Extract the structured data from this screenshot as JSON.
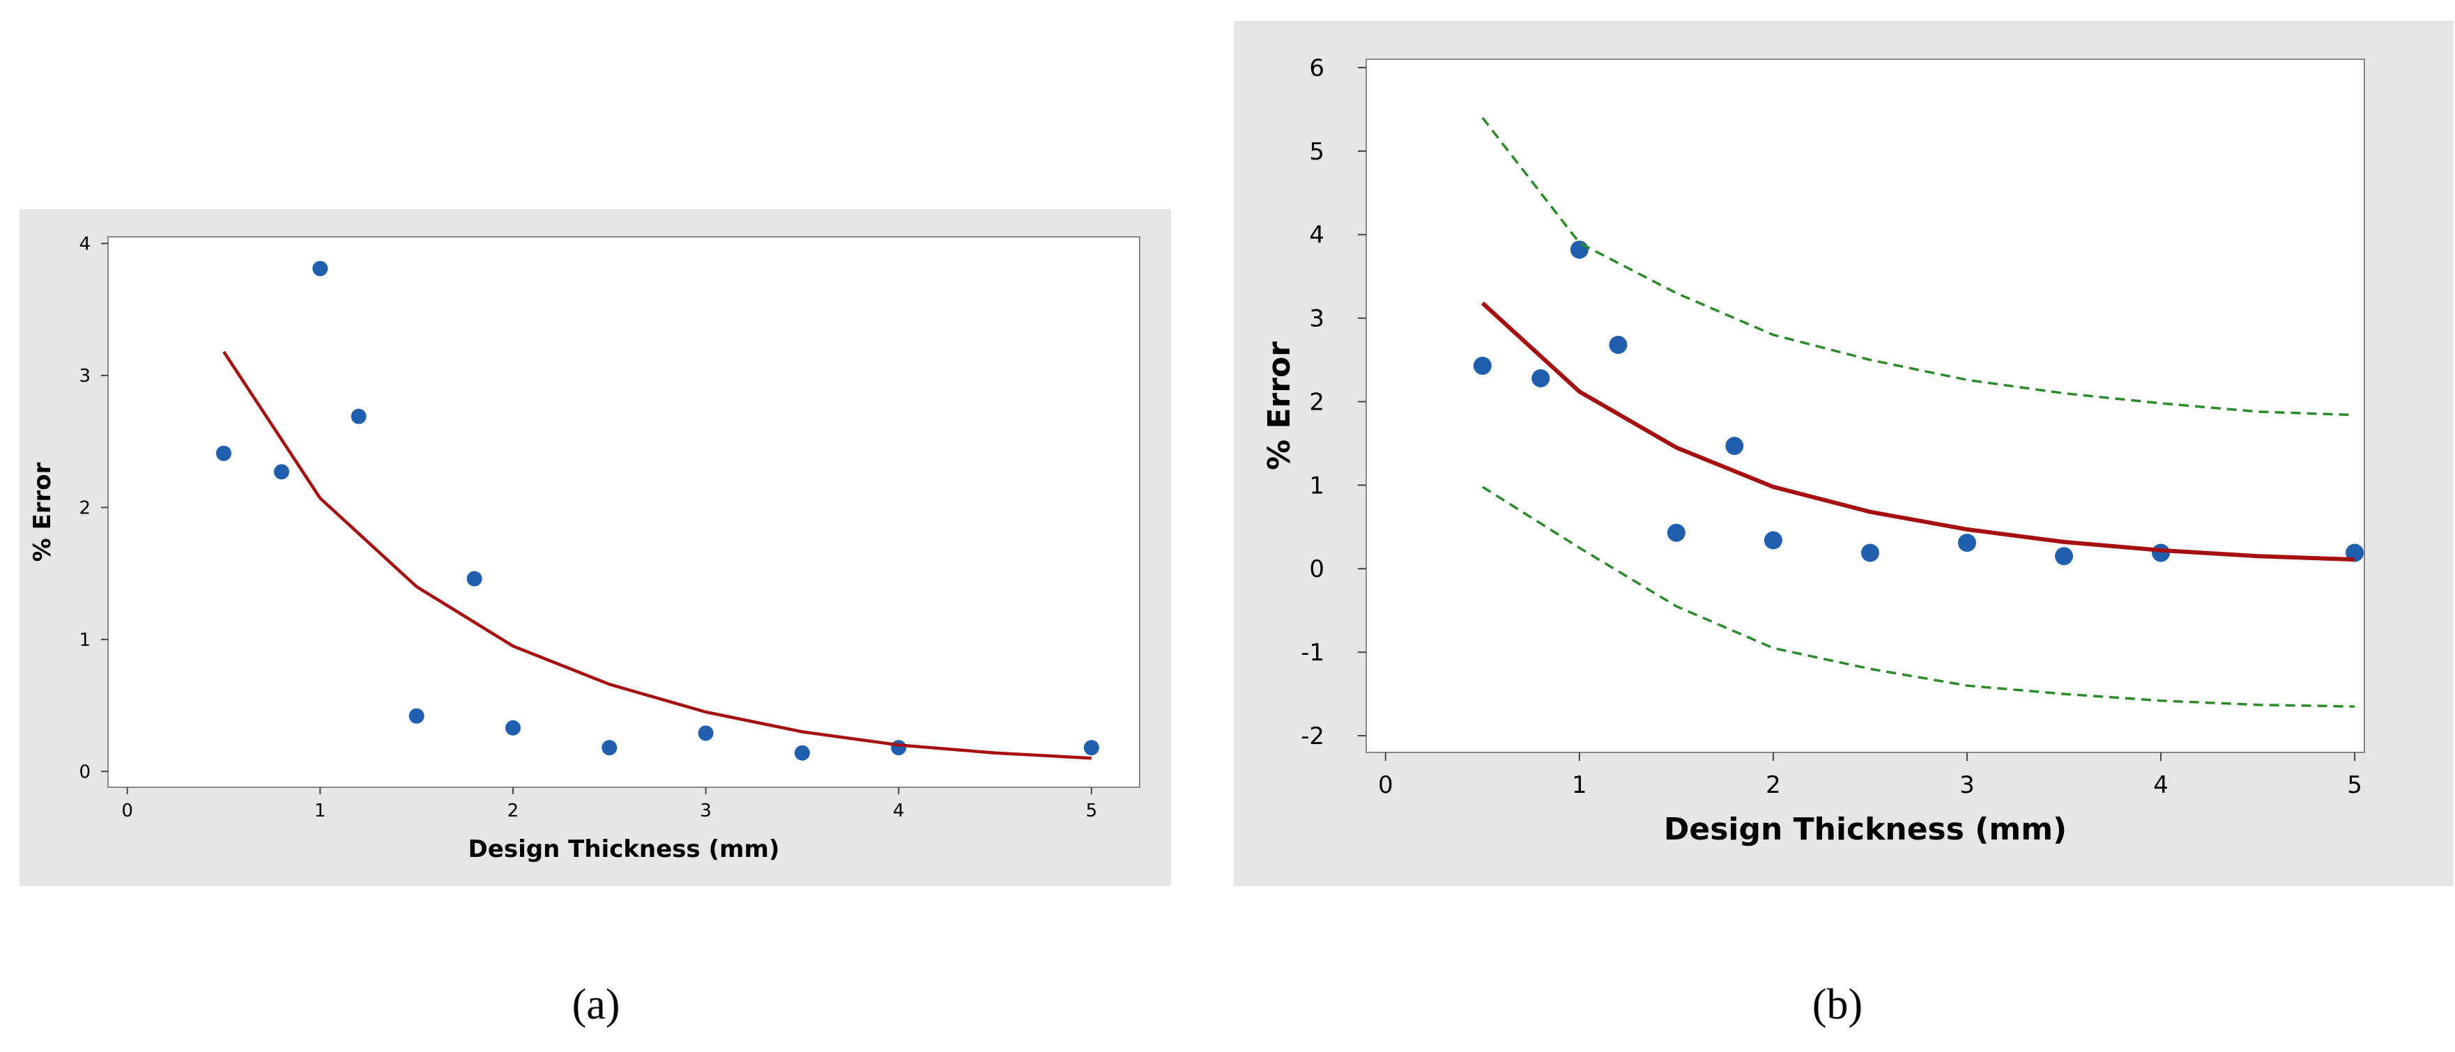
{
  "chart_data": [
    {
      "type": "scatter",
      "caption": "(a)",
      "title": "",
      "xlabel": "Design Thickness (mm)",
      "ylabel": "% Error",
      "xlim": [
        -0.1,
        5.25
      ],
      "ylim": [
        -0.12,
        4.05
      ],
      "x_ticks": [
        "0",
        "1",
        "2",
        "3",
        "4",
        "5"
      ],
      "y_ticks": [
        "0",
        "1",
        "2",
        "3",
        "4"
      ],
      "grid": false,
      "colors": {
        "points": "#1f5fae",
        "fit": "#a50f0f",
        "plot_bg": "#ffffff",
        "frame_bg": "#e6e6e6"
      },
      "series": [
        {
          "kind": "scatter",
          "points": [
            [
              0.5,
              2.41
            ],
            [
              0.8,
              2.27
            ],
            [
              1.0,
              3.81
            ],
            [
              1.2,
              2.69
            ],
            [
              1.5,
              0.42
            ],
            [
              1.8,
              1.46
            ],
            [
              2.0,
              0.33
            ],
            [
              2.5,
              0.18
            ],
            [
              3.0,
              0.29
            ],
            [
              3.5,
              0.14
            ],
            [
              4.0,
              0.18
            ],
            [
              5.0,
              0.18
            ]
          ]
        },
        {
          "kind": "line",
          "points": [
            [
              0.5,
              3.18
            ],
            [
              1.0,
              2.07
            ],
            [
              1.5,
              1.4
            ],
            [
              2.0,
              0.95
            ],
            [
              2.5,
              0.66
            ],
            [
              3.0,
              0.45
            ],
            [
              3.5,
              0.3
            ],
            [
              4.0,
              0.2
            ],
            [
              4.5,
              0.14
            ],
            [
              5.0,
              0.1
            ]
          ]
        }
      ]
    },
    {
      "type": "scatter",
      "caption": "(b)",
      "title": "",
      "xlabel": "Design Thickness (mm)",
      "ylabel": "% Error",
      "xlim": [
        -0.1,
        5.05
      ],
      "ylim": [
        -2.2,
        6.1
      ],
      "x_ticks": [
        "0",
        "1",
        "2",
        "3",
        "4",
        "5"
      ],
      "y_ticks": [
        "-2",
        "-1",
        "0",
        "1",
        "2",
        "3",
        "4",
        "5",
        "6"
      ],
      "grid": false,
      "colors": {
        "points": "#1f5fae",
        "fit": "#a50f0f",
        "band": "#2a8a2a",
        "plot_bg": "#ffffff",
        "frame_bg": "#e6e6e6"
      },
      "series": [
        {
          "kind": "scatter",
          "points": [
            [
              0.5,
              2.43
            ],
            [
              0.8,
              2.28
            ],
            [
              1.0,
              3.82
            ],
            [
              1.2,
              2.68
            ],
            [
              1.5,
              0.43
            ],
            [
              1.8,
              1.47
            ],
            [
              2.0,
              0.34
            ],
            [
              2.5,
              0.19
            ],
            [
              3.0,
              0.31
            ],
            [
              3.5,
              0.15
            ],
            [
              4.0,
              0.19
            ],
            [
              5.0,
              0.19
            ]
          ]
        },
        {
          "kind": "line",
          "points": [
            [
              0.5,
              3.18
            ],
            [
              1.0,
              2.12
            ],
            [
              1.5,
              1.45
            ],
            [
              2.0,
              0.98
            ],
            [
              2.5,
              0.68
            ],
            [
              3.0,
              0.47
            ],
            [
              3.5,
              0.32
            ],
            [
              4.0,
              0.22
            ],
            [
              4.5,
              0.15
            ],
            [
              5.0,
              0.11
            ]
          ]
        },
        {
          "kind": "dashed",
          "points": [
            [
              0.5,
              5.4
            ],
            [
              1.0,
              3.9
            ],
            [
              1.5,
              3.3
            ],
            [
              2.0,
              2.8
            ],
            [
              2.5,
              2.5
            ],
            [
              3.0,
              2.26
            ],
            [
              3.5,
              2.1
            ],
            [
              4.0,
              1.98
            ],
            [
              4.5,
              1.88
            ],
            [
              5.0,
              1.84
            ]
          ]
        },
        {
          "kind": "dashed",
          "points": [
            [
              0.5,
              0.98
            ],
            [
              1.0,
              0.25
            ],
            [
              1.5,
              -0.45
            ],
            [
              2.0,
              -0.95
            ],
            [
              2.5,
              -1.2
            ],
            [
              3.0,
              -1.4
            ],
            [
              3.5,
              -1.5
            ],
            [
              4.0,
              -1.58
            ],
            [
              4.5,
              -1.63
            ],
            [
              5.0,
              -1.65
            ]
          ]
        }
      ]
    }
  ]
}
